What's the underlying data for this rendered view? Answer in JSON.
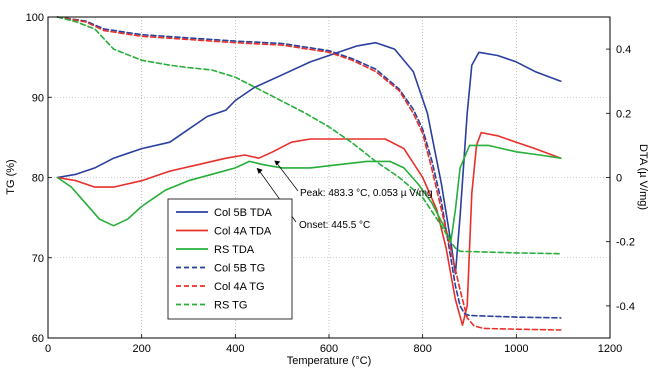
{
  "chart_data": {
    "type": "line",
    "xlabel": "Temperature (°C)",
    "ylabel_left": "TG (%)",
    "ylabel_right": "DTA (µ V/mg)",
    "xlim": [
      0,
      1200
    ],
    "ylim_left": [
      60,
      100
    ],
    "ylim_right": [
      -0.5,
      0.5
    ],
    "x_ticks": [
      "0",
      "200",
      "400",
      "600",
      "800",
      "1000",
      "1200"
    ],
    "yleft_ticks": [
      "60",
      "70",
      "80",
      "90",
      "100"
    ],
    "yright_ticks": [
      "-0.4",
      "-0.2",
      "0",
      "0.2",
      "0.4"
    ],
    "x_tick_values": [
      0,
      200,
      400,
      600,
      800,
      1000,
      1200
    ],
    "yleft_tick_values": [
      60,
      70,
      80,
      90,
      100
    ],
    "yright_tick_values": [
      -0.4,
      -0.2,
      0,
      0.2,
      0.4
    ],
    "grid": true,
    "legend_position": "lower-left",
    "series": [
      {
        "name": "Col 5B TDA",
        "axis": "right",
        "style": "solid",
        "color": "#2a3f9e",
        "x": [
          20,
          60,
          100,
          140,
          200,
          260,
          300,
          340,
          380,
          400,
          440,
          500,
          560,
          620,
          660,
          700,
          740,
          780,
          810,
          840,
          860,
          870,
          880,
          895,
          905,
          920,
          960,
          1000,
          1040,
          1095
        ],
        "y": [
          0.0,
          0.01,
          0.03,
          0.06,
          0.09,
          0.11,
          0.15,
          0.19,
          0.21,
          0.24,
          0.28,
          0.32,
          0.36,
          0.39,
          0.41,
          0.42,
          0.4,
          0.33,
          0.2,
          -0.02,
          -0.2,
          -0.3,
          -0.12,
          0.2,
          0.35,
          0.39,
          0.38,
          0.36,
          0.33,
          0.3
        ]
      },
      {
        "name": "Col 4A TDA",
        "axis": "right",
        "style": "solid",
        "color": "#e8302a",
        "x": [
          20,
          60,
          100,
          140,
          200,
          260,
          320,
          380,
          420,
          450,
          480,
          520,
          560,
          600,
          660,
          720,
          760,
          800,
          830,
          850,
          870,
          885,
          895,
          905,
          915,
          925,
          960,
          1000,
          1040,
          1095
        ],
        "y": [
          0.0,
          -0.01,
          -0.03,
          -0.03,
          -0.01,
          0.02,
          0.04,
          0.06,
          0.07,
          0.06,
          0.08,
          0.11,
          0.12,
          0.12,
          0.12,
          0.12,
          0.09,
          0.0,
          -0.1,
          -0.22,
          -0.38,
          -0.46,
          -0.4,
          -0.05,
          0.1,
          0.14,
          0.13,
          0.11,
          0.09,
          0.06
        ]
      },
      {
        "name": "RS TDA",
        "axis": "right",
        "style": "solid",
        "color": "#27ae3a",
        "x": [
          20,
          50,
          80,
          110,
          140,
          170,
          200,
          250,
          300,
          350,
          400,
          430,
          460,
          500,
          560,
          620,
          680,
          730,
          760,
          790,
          820,
          845,
          860,
          870,
          880,
          900,
          940,
          1000,
          1050,
          1095
        ],
        "y": [
          0.0,
          -0.03,
          -0.08,
          -0.13,
          -0.15,
          -0.13,
          -0.09,
          -0.04,
          -0.01,
          0.01,
          0.03,
          0.05,
          0.04,
          0.03,
          0.03,
          0.04,
          0.05,
          0.05,
          0.03,
          -0.02,
          -0.08,
          -0.15,
          -0.2,
          -0.1,
          0.03,
          0.1,
          0.1,
          0.08,
          0.07,
          0.06
        ]
      },
      {
        "name": "Col 5B TG",
        "axis": "left",
        "style": "dashed",
        "color": "#2a3f9e",
        "x": [
          20,
          80,
          120,
          200,
          300,
          400,
          500,
          600,
          650,
          700,
          750,
          780,
          800,
          820,
          840,
          860,
          870,
          880,
          890,
          900,
          950,
          1000,
          1095
        ],
        "y": [
          100,
          99.5,
          98.5,
          97.8,
          97.4,
          97.0,
          96.7,
          95.8,
          94.8,
          93.5,
          91.0,
          88.5,
          86.0,
          82.0,
          77.0,
          70.0,
          66.5,
          64.0,
          63.0,
          62.8,
          62.7,
          62.6,
          62.5
        ]
      },
      {
        "name": "Col 4A TG",
        "axis": "left",
        "style": "dashed",
        "color": "#e8302a",
        "x": [
          20,
          80,
          120,
          200,
          300,
          400,
          500,
          600,
          650,
          700,
          750,
          780,
          800,
          820,
          840,
          860,
          880,
          895,
          910,
          930,
          1000,
          1095
        ],
        "y": [
          100,
          99.4,
          98.3,
          97.6,
          97.2,
          96.8,
          96.5,
          95.6,
          94.6,
          93.2,
          90.8,
          88.0,
          85.5,
          81.0,
          76.0,
          71.0,
          66.0,
          62.5,
          61.5,
          61.2,
          61.1,
          61.0
        ]
      },
      {
        "name": "RS TG",
        "axis": "left",
        "style": "dashed",
        "color": "#27ae3a",
        "x": [
          20,
          60,
          100,
          140,
          200,
          260,
          300,
          350,
          400,
          450,
          500,
          550,
          600,
          650,
          700,
          750,
          800,
          840,
          860,
          870,
          880,
          1000,
          1095
        ],
        "y": [
          100,
          99.4,
          98.5,
          96.0,
          94.6,
          94.0,
          93.7,
          93.4,
          92.5,
          91.0,
          89.5,
          88.0,
          86.3,
          84.3,
          82.0,
          80.0,
          77.5,
          74.0,
          72.0,
          71.2,
          70.8,
          70.6,
          70.5
        ]
      }
    ],
    "annotations": [
      {
        "text": "Peak: 483.3 °C, 0.053 µ V/mg",
        "x": 483.3,
        "y": 0.053,
        "axis": "right"
      },
      {
        "text": "Onset: 445.5 °C",
        "x": 445.5,
        "y": 0.03,
        "axis": "right"
      }
    ]
  }
}
